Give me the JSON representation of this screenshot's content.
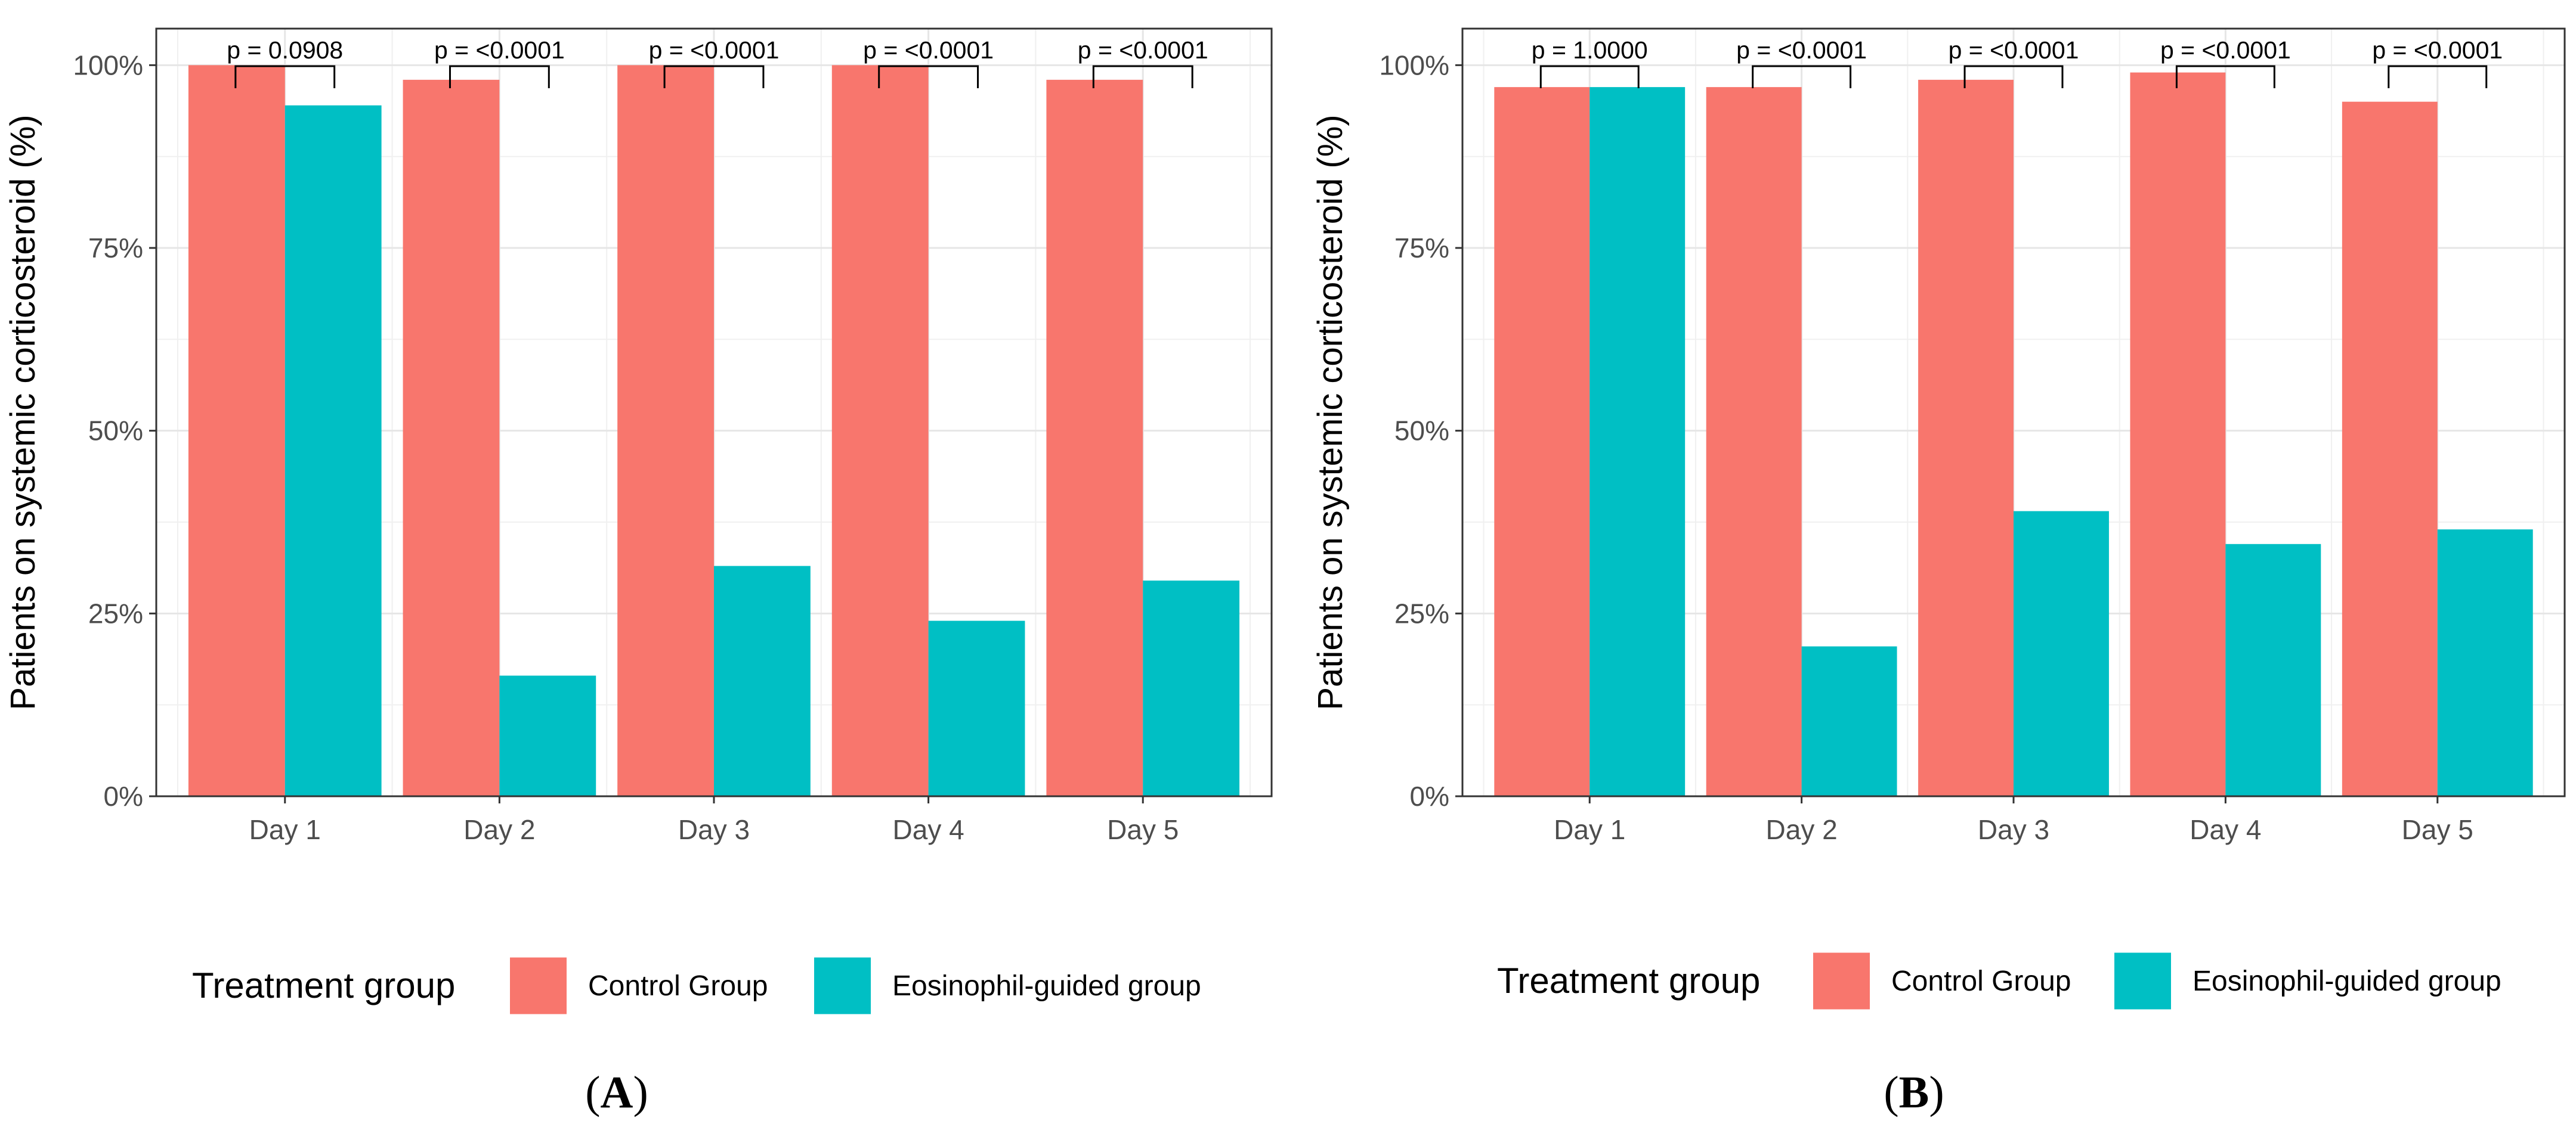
{
  "legend_title": "Treatment group",
  "chart_data": [
    {
      "type": "bar",
      "panel_label": "(A)",
      "panel_letter": "A",
      "ylabel": "Patients on systemic corticosteroid (%)",
      "xlabel": "",
      "categories": [
        "Day 1",
        "Day 2",
        "Day 3",
        "Day 4",
        "Day 5"
      ],
      "ylim": [
        0,
        105
      ],
      "yticks": [
        0,
        25,
        50,
        75,
        100
      ],
      "ytick_labels": [
        "0%",
        "25%",
        "50%",
        "75%",
        "100%"
      ],
      "grid": true,
      "legend_position": "bottom",
      "legend_title": "Treatment group",
      "series": [
        {
          "name": "Control Group",
          "color": "#F8766D",
          "values": [
            100,
            98,
            100,
            100,
            98
          ]
        },
        {
          "name": "Eosinophil-guided group",
          "color": "#00BFC4",
          "values": [
            94.5,
            16.5,
            31.5,
            24,
            29.5
          ]
        }
      ],
      "annotations": [
        "p = 0.0908",
        "p = <0.0001",
        "p = <0.0001",
        "p = <0.0001",
        "p = <0.0001"
      ]
    },
    {
      "type": "bar",
      "panel_label": "(B)",
      "panel_letter": "B",
      "ylabel": "Patients on systemic corticosteroid (%)",
      "xlabel": "",
      "categories": [
        "Day 1",
        "Day 2",
        "Day 3",
        "Day 4",
        "Day 5"
      ],
      "ylim": [
        0,
        105
      ],
      "yticks": [
        0,
        25,
        50,
        75,
        100
      ],
      "ytick_labels": [
        "0%",
        "25%",
        "50%",
        "75%",
        "100%"
      ],
      "grid": true,
      "legend_position": "bottom",
      "legend_title": "Treatment group",
      "series": [
        {
          "name": "Control Group",
          "color": "#F8766D",
          "values": [
            97,
            97,
            98,
            99,
            95
          ]
        },
        {
          "name": "Eosinophil-guided group",
          "color": "#00BFC4",
          "values": [
            97,
            20.5,
            39,
            34.5,
            36.5
          ]
        }
      ],
      "annotations": [
        "p = 1.0000",
        "p = <0.0001",
        "p = <0.0001",
        "p = <0.0001",
        "p = <0.0001"
      ]
    }
  ]
}
